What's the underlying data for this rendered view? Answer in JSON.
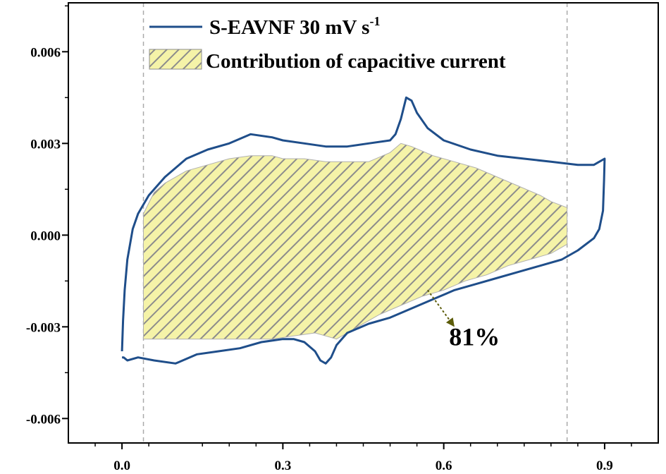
{
  "chart_data": {
    "type": "line",
    "title": "",
    "xlabel": "",
    "ylabel": "",
    "xlim": [
      -0.1,
      1.0
    ],
    "ylim": [
      -0.0068,
      0.0076
    ],
    "xticks": [
      {
        "value": 0.0,
        "label": "0.0"
      },
      {
        "value": 0.3,
        "label": "0.3"
      },
      {
        "value": 0.6,
        "label": "0.6"
      },
      {
        "value": 0.9,
        "label": "0.9"
      }
    ],
    "yticks": [
      {
        "value": 0.006,
        "label": "0.006"
      },
      {
        "value": 0.003,
        "label": "0.003"
      },
      {
        "value": 0.0,
        "label": "0.000"
      },
      {
        "value": -0.003,
        "label": "-0.003"
      },
      {
        "value": -0.006,
        "label": "-0.006"
      }
    ],
    "xminor": [
      -0.05,
      0.05,
      0.15,
      0.2,
      0.25,
      0.35,
      0.4,
      0.45,
      0.5,
      0.55,
      0.65,
      0.7,
      0.75,
      0.8,
      0.85,
      0.95
    ],
    "yminor": [
      0.0075,
      0.0045,
      0.0015,
      -0.0015,
      -0.0045
    ],
    "grid": false,
    "legend_position": "top",
    "vlines": [
      0.04,
      0.83
    ],
    "series": [
      {
        "name": "S-EAVNF 30 mV s",
        "name_sup": "-1",
        "color": "#1f4e8a",
        "x": [
          0.0,
          0.002,
          0.005,
          0.01,
          0.02,
          0.03,
          0.05,
          0.08,
          0.12,
          0.16,
          0.2,
          0.24,
          0.28,
          0.3,
          0.34,
          0.38,
          0.42,
          0.46,
          0.5,
          0.51,
          0.52,
          0.53,
          0.54,
          0.55,
          0.57,
          0.6,
          0.65,
          0.7,
          0.75,
          0.8,
          0.85,
          0.88,
          0.89,
          0.9,
          0.899,
          0.897,
          0.89,
          0.88,
          0.85,
          0.82,
          0.78,
          0.74,
          0.7,
          0.66,
          0.62,
          0.58,
          0.54,
          0.5,
          0.46,
          0.42,
          0.4,
          0.39,
          0.38,
          0.37,
          0.36,
          0.34,
          0.32,
          0.3,
          0.26,
          0.22,
          0.18,
          0.14,
          0.1,
          0.06,
          0.03,
          0.01,
          0.003,
          0.0
        ],
        "y": [
          -0.0038,
          -0.0028,
          -0.0018,
          -0.0008,
          0.0002,
          0.0007,
          0.0013,
          0.0019,
          0.0025,
          0.0028,
          0.003,
          0.0033,
          0.0032,
          0.0031,
          0.003,
          0.0029,
          0.0029,
          0.003,
          0.0031,
          0.0033,
          0.0038,
          0.0045,
          0.0044,
          0.004,
          0.0035,
          0.0031,
          0.0028,
          0.0026,
          0.0025,
          0.0024,
          0.0023,
          0.0023,
          0.0024,
          0.0025,
          0.0018,
          0.0008,
          0.0002,
          -0.0001,
          -0.0005,
          -0.0008,
          -0.001,
          -0.0012,
          -0.0014,
          -0.0016,
          -0.0018,
          -0.0021,
          -0.0024,
          -0.0027,
          -0.0029,
          -0.0032,
          -0.0036,
          -0.004,
          -0.0042,
          -0.0041,
          -0.0038,
          -0.0035,
          -0.0034,
          -0.0034,
          -0.0035,
          -0.0037,
          -0.0038,
          -0.0039,
          -0.0042,
          -0.0041,
          -0.004,
          -0.0041,
          -0.004,
          -0.004
        ]
      }
    ],
    "fill": {
      "name": "Contribution of capacitive current",
      "color": "#f5f3a8",
      "hatch_color": "#8c8c8c",
      "upper": {
        "x": [
          0.04,
          0.06,
          0.08,
          0.12,
          0.16,
          0.2,
          0.24,
          0.28,
          0.3,
          0.34,
          0.38,
          0.42,
          0.46,
          0.5,
          0.52,
          0.54,
          0.58,
          0.62,
          0.66,
          0.7,
          0.74,
          0.78,
          0.8,
          0.83
        ],
        "y": [
          0.0007,
          0.0014,
          0.0017,
          0.0021,
          0.0023,
          0.0025,
          0.0026,
          0.0026,
          0.0025,
          0.0025,
          0.0024,
          0.0024,
          0.0024,
          0.0027,
          0.003,
          0.0029,
          0.0026,
          0.0024,
          0.0022,
          0.0019,
          0.0016,
          0.0013,
          0.0011,
          0.0009
        ]
      },
      "lower": {
        "x": [
          0.83,
          0.8,
          0.76,
          0.72,
          0.68,
          0.64,
          0.6,
          0.56,
          0.52,
          0.48,
          0.44,
          0.4,
          0.38,
          0.36,
          0.32,
          0.28,
          0.24,
          0.2,
          0.16,
          0.12,
          0.08,
          0.04
        ],
        "y": [
          -0.0003,
          -0.0006,
          -0.0008,
          -0.001,
          -0.0013,
          -0.0015,
          -0.0018,
          -0.002,
          -0.0023,
          -0.0026,
          -0.003,
          -0.0034,
          -0.0033,
          -0.0032,
          -0.0033,
          -0.0034,
          -0.0034,
          -0.0034,
          -0.0034,
          -0.0034,
          -0.0034,
          -0.0034
        ]
      }
    },
    "annotation": {
      "text": "81%",
      "arrow_from": [
        0.57,
        -0.0018
      ],
      "arrow_to": [
        0.62,
        -0.003
      ],
      "arrow_color": "#5c5c0a",
      "text_at": [
        0.61,
        -0.0036
      ]
    },
    "colors": {
      "axis": "#000000",
      "vline": "#aaaaaa"
    }
  }
}
